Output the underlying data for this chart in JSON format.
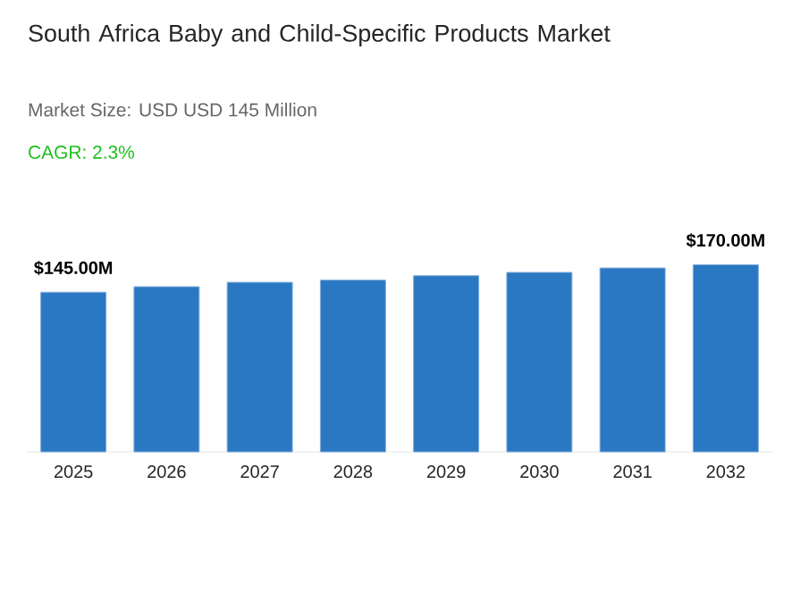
{
  "chart_data": {
    "type": "bar",
    "title": "South Africa Baby and Child-Specific Products  Market",
    "subtitle": "Market Size: USD USD 145 Million",
    "annotations": [
      "CAGR: 2.3%"
    ],
    "categories": [
      "2025",
      "2026",
      "2027",
      "2028",
      "2029",
      "2030",
      "2031",
      "2032"
    ],
    "values": [
      145,
      150,
      154,
      156,
      160,
      163,
      167,
      170
    ],
    "value_labels": [
      "$145.00M",
      null,
      null,
      null,
      null,
      null,
      null,
      "$170.00M"
    ],
    "color": "#2b78c2"
  }
}
